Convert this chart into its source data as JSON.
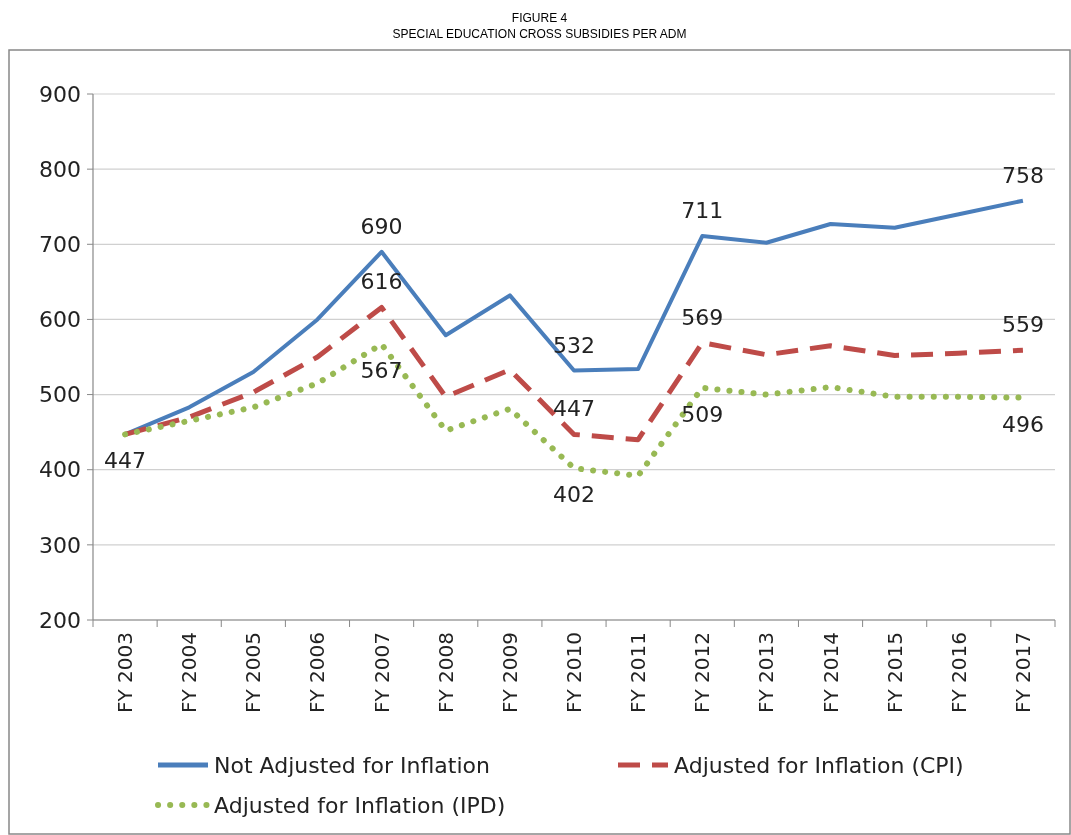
{
  "chart_data": {
    "type": "line",
    "title": "FIGURE 4",
    "subtitle": "SPECIAL EDUCATION CROSS SUBSIDIES PER ADM",
    "categories": [
      "FY 2003",
      "FY 2004",
      "FY 2005",
      "FY 2006",
      "FY 2007",
      "FY 2008",
      "FY 2009",
      "FY 2010",
      "FY 2011",
      "FY 2012",
      "FY 2013",
      "FY 2014",
      "FY 2015",
      "FY 2016",
      "FY 2017"
    ],
    "series": [
      {
        "name": "Not Adjusted for Inflation",
        "color": "#4a7ebb",
        "line_style": "solid",
        "values": [
          447,
          483,
          530,
          600,
          690,
          579,
          632,
          532,
          534,
          711,
          702,
          727,
          722,
          740,
          758
        ],
        "value_labels": [
          null,
          null,
          null,
          null,
          "690",
          null,
          null,
          "532",
          null,
          "711",
          null,
          null,
          null,
          null,
          "758"
        ]
      },
      {
        "name": "Adjusted for Inflation (CPI)",
        "color": "#be4b48",
        "line_style": "dashed",
        "values": [
          447,
          470,
          503,
          550,
          616,
          497,
          533,
          447,
          440,
          569,
          553,
          565,
          552,
          555,
          559
        ],
        "value_labels": [
          null,
          null,
          null,
          null,
          "616",
          null,
          null,
          "447",
          null,
          "569",
          null,
          null,
          null,
          null,
          "559"
        ]
      },
      {
        "name": "Adjusted for Inflation (IPD)",
        "color": "#98b954",
        "line_style": "dotted",
        "values": [
          447,
          465,
          483,
          515,
          567,
          452,
          481,
          402,
          392,
          509,
          500,
          510,
          497,
          497,
          496
        ],
        "value_labels": [
          "447",
          null,
          null,
          null,
          "567",
          null,
          null,
          "402",
          null,
          "509",
          null,
          null,
          null,
          null,
          "496"
        ]
      }
    ],
    "ylim": [
      200,
      900
    ],
    "yticks": [
      200,
      300,
      400,
      500,
      600,
      700,
      800,
      900
    ],
    "grid": "y",
    "legend": "bottom",
    "marker": "none"
  }
}
